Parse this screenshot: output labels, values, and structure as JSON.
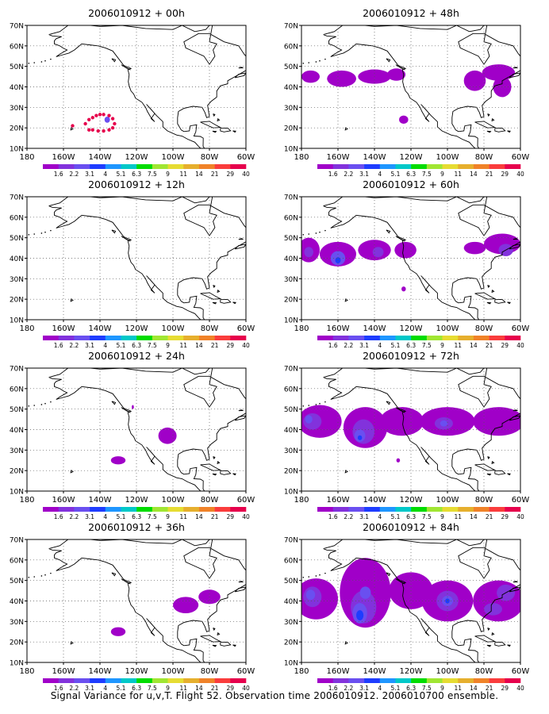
{
  "footer": "Signal Variance for u,v,T. Flight 52. Observation time 2006010912. 2006010700 ensemble.",
  "colorbar": {
    "labels": [
      "1.6",
      "2.2",
      "3.1",
      "4",
      "5.1",
      "6.3",
      "7.5",
      "9",
      "11",
      "14",
      "21",
      "29",
      "40"
    ],
    "colors": [
      "#a000c8",
      "#8232dc",
      "#6a4ff0",
      "#1e3cff",
      "#1e96ff",
      "#00c8c8",
      "#00dc00",
      "#a0e632",
      "#e6dc32",
      "#e6af2d",
      "#f08228",
      "#fa3c3c",
      "#e6004c"
    ]
  },
  "map_axes": {
    "x_ticks": [
      "180",
      "160W",
      "140W",
      "120W",
      "100W",
      "80W",
      "60W"
    ],
    "y_ticks": [
      "10N",
      "20N",
      "30N",
      "40N",
      "50N",
      "60N",
      "70N"
    ],
    "xlim": [
      -180,
      -60
    ],
    "ylim": [
      10,
      70
    ],
    "grid": "dotted"
  },
  "chart_data": [
    {
      "type": "heatmap",
      "title": "2006010912 + 00h",
      "blobs": [
        {
          "lon": -136,
          "lat": 24,
          "rlon": 1.5,
          "rlat": 1.5,
          "level": 2
        }
      ],
      "dots": [
        [
          -148,
          22
        ],
        [
          -146,
          24
        ],
        [
          -144,
          25
        ],
        [
          -142,
          26
        ],
        [
          -140,
          26.5
        ],
        [
          -138,
          26.5
        ],
        [
          -135,
          26
        ],
        [
          -133,
          24.5
        ],
        [
          -132,
          22
        ],
        [
          -133,
          20
        ],
        [
          -135,
          19
        ],
        [
          -138,
          18.5
        ],
        [
          -141,
          18.5
        ],
        [
          -144,
          19
        ],
        [
          -146,
          19
        ],
        [
          -155,
          21
        ]
      ]
    },
    {
      "type": "heatmap",
      "title": "2006010912 + 48h",
      "blobs": [
        {
          "lon": -175,
          "lat": 45,
          "rlon": 5,
          "rlat": 3,
          "level": 0
        },
        {
          "lon": -158,
          "lat": 44,
          "rlon": 8,
          "rlat": 4,
          "level": 0
        },
        {
          "lon": -140,
          "lat": 45,
          "rlon": 9,
          "rlat": 3.5,
          "level": 0
        },
        {
          "lon": -128,
          "lat": 46,
          "rlon": 5,
          "rlat": 3,
          "level": 0
        },
        {
          "lon": -124,
          "lat": 24,
          "rlon": 2.5,
          "rlat": 2,
          "level": 0
        },
        {
          "lon": -85,
          "lat": 43,
          "rlon": 6,
          "rlat": 5,
          "level": 0
        },
        {
          "lon": -72,
          "lat": 47,
          "rlon": 9,
          "rlat": 4,
          "level": 0
        },
        {
          "lon": -70,
          "lat": 40,
          "rlon": 5,
          "rlat": 5,
          "level": 0
        }
      ],
      "dots": []
    },
    {
      "type": "heatmap",
      "title": "2006010912 + 12h",
      "blobs": [],
      "dots": []
    },
    {
      "type": "heatmap",
      "title": "2006010912 + 60h",
      "blobs": [
        {
          "lon": -176,
          "lat": 44,
          "rlon": 6,
          "rlat": 6,
          "level": 0
        },
        {
          "lon": -176,
          "lat": 43,
          "rlon": 2.5,
          "rlat": 2.5,
          "level": 1
        },
        {
          "lon": -160,
          "lat": 42,
          "rlon": 10,
          "rlat": 6,
          "level": 0
        },
        {
          "lon": -160,
          "lat": 40,
          "rlon": 4,
          "rlat": 3.5,
          "level": 2
        },
        {
          "lon": -160,
          "lat": 39,
          "rlon": 1.5,
          "rlat": 1.5,
          "level": 3
        },
        {
          "lon": -140,
          "lat": 44,
          "rlon": 9,
          "rlat": 5,
          "level": 0
        },
        {
          "lon": -138,
          "lat": 43,
          "rlon": 3,
          "rlat": 2.5,
          "level": 1
        },
        {
          "lon": -123,
          "lat": 44,
          "rlon": 6,
          "rlat": 4,
          "level": 0
        },
        {
          "lon": -124,
          "lat": 25,
          "rlon": 1.2,
          "rlat": 1.2,
          "level": 0
        },
        {
          "lon": -85,
          "lat": 45,
          "rlon": 6,
          "rlat": 3,
          "level": 0
        },
        {
          "lon": -70,
          "lat": 47,
          "rlon": 10,
          "rlat": 5,
          "level": 0
        },
        {
          "lon": -68,
          "lat": 44,
          "rlon": 4,
          "rlat": 3,
          "level": 1
        }
      ],
      "dots": []
    },
    {
      "type": "heatmap",
      "title": "2006010912 + 24h",
      "blobs": [
        {
          "lon": -103,
          "lat": 37,
          "rlon": 5,
          "rlat": 4,
          "level": 0
        },
        {
          "lon": -130,
          "lat": 25,
          "rlon": 4,
          "rlat": 2,
          "level": 0
        },
        {
          "lon": -122,
          "lat": 51,
          "rlon": 0.6,
          "rlat": 1,
          "level": 0
        }
      ],
      "dots": []
    },
    {
      "type": "heatmap",
      "title": "2006010912 + 72h",
      "blobs": [
        {
          "lon": -170,
          "lat": 44,
          "rlon": 12,
          "rlat": 8,
          "level": 0
        },
        {
          "lon": -174,
          "lat": 44,
          "rlon": 5,
          "rlat": 4,
          "level": 1
        },
        {
          "lon": -176,
          "lat": 45,
          "rlon": 2,
          "rlat": 2,
          "level": 2
        },
        {
          "lon": -145,
          "lat": 41,
          "rlon": 12,
          "rlat": 10,
          "level": 0
        },
        {
          "lon": -146,
          "lat": 39,
          "rlon": 6,
          "rlat": 6,
          "level": 1
        },
        {
          "lon": -148,
          "lat": 37,
          "rlon": 3,
          "rlat": 3,
          "level": 2
        },
        {
          "lon": -148,
          "lat": 36,
          "rlon": 1.2,
          "rlat": 1.2,
          "level": 3
        },
        {
          "lon": -125,
          "lat": 44,
          "rlon": 12,
          "rlat": 7,
          "level": 0
        },
        {
          "lon": -100,
          "lat": 44,
          "rlon": 15,
          "rlat": 7,
          "level": 0
        },
        {
          "lon": -102,
          "lat": 43,
          "rlon": 5,
          "rlat": 3,
          "level": 1
        },
        {
          "lon": -102,
          "lat": 43,
          "rlon": 2,
          "rlat": 1.5,
          "level": 2
        },
        {
          "lon": -72,
          "lat": 44,
          "rlon": 14,
          "rlat": 7,
          "level": 0
        },
        {
          "lon": -127,
          "lat": 25,
          "rlon": 1,
          "rlat": 1,
          "level": 0
        }
      ],
      "dots": []
    },
    {
      "type": "heatmap",
      "title": "2006010912 + 36h",
      "blobs": [
        {
          "lon": -93,
          "lat": 38,
          "rlon": 7,
          "rlat": 4,
          "level": 0
        },
        {
          "lon": -80,
          "lat": 42,
          "rlon": 6,
          "rlat": 3.5,
          "level": 0
        },
        {
          "lon": -130,
          "lat": 25,
          "rlon": 4,
          "rlat": 2.2,
          "level": 0
        }
      ],
      "dots": []
    },
    {
      "type": "heatmap",
      "title": "2006010912 + 84h",
      "blobs": [
        {
          "lon": -172,
          "lat": 41,
          "rlon": 12,
          "rlat": 10,
          "level": 0
        },
        {
          "lon": -174,
          "lat": 42,
          "rlon": 5,
          "rlat": 5,
          "level": 1
        },
        {
          "lon": -175,
          "lat": 43,
          "rlon": 2.5,
          "rlat": 2.5,
          "level": 2
        },
        {
          "lon": -145,
          "lat": 44,
          "rlon": 14,
          "rlat": 17,
          "level": 0
        },
        {
          "lon": -146,
          "lat": 37,
          "rlon": 7,
          "rlat": 8,
          "level": 1
        },
        {
          "lon": -148,
          "lat": 34,
          "rlon": 4,
          "rlat": 5,
          "level": 2
        },
        {
          "lon": -148,
          "lat": 33,
          "rlon": 2,
          "rlat": 2.5,
          "level": 3
        },
        {
          "lon": -145,
          "lat": 44,
          "rlon": 3,
          "rlat": 3,
          "level": 2
        },
        {
          "lon": -120,
          "lat": 45,
          "rlon": 12,
          "rlat": 9,
          "level": 0
        },
        {
          "lon": -100,
          "lat": 40,
          "rlon": 14,
          "rlat": 10,
          "level": 0
        },
        {
          "lon": -100,
          "lat": 40,
          "rlon": 6,
          "rlat": 5,
          "level": 1
        },
        {
          "lon": -100,
          "lat": 40,
          "rlon": 3,
          "rlat": 2.5,
          "level": 2
        },
        {
          "lon": -100,
          "lat": 40,
          "rlon": 1.2,
          "rlat": 1.2,
          "level": 3
        },
        {
          "lon": -72,
          "lat": 40,
          "rlon": 14,
          "rlat": 10,
          "level": 0
        },
        {
          "lon": -68,
          "lat": 44,
          "rlon": 5,
          "rlat": 4,
          "level": 1
        },
        {
          "lon": -75,
          "lat": 36,
          "rlon": 5,
          "rlat": 3,
          "level": 1
        }
      ],
      "dots": []
    }
  ]
}
